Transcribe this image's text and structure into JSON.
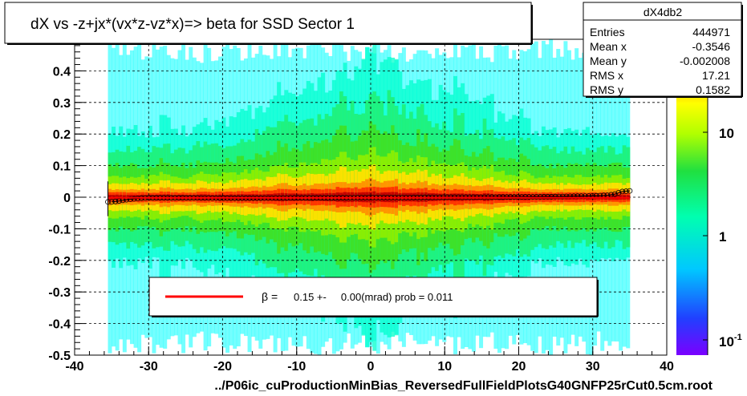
{
  "title": "dX vs  -z+jx*(vx*z-vz*x)=> beta  for SSD Sector 1",
  "footer": "../P06ic_cuProductionMinBias_ReversedFullFieldPlotsG40GNFP25rCut0.5cm.root",
  "stats": {
    "name": "dX4db2",
    "rows": [
      {
        "label": "Entries",
        "value": "444971"
      },
      {
        "label": "Mean x",
        "value": "-0.3546"
      },
      {
        "label": "Mean y",
        "value": "-0.002008"
      },
      {
        "label": "RMS x",
        "value": "17.21"
      },
      {
        "label": "RMS y",
        "value": "0.1582"
      }
    ]
  },
  "legend": {
    "symbol": "β =",
    "text": "0.15 +-     0.00(mrad) prob = 0.011",
    "line_color": "#ff0000"
  },
  "chart_data": {
    "type": "heatmap",
    "xlim": [
      -40,
      40
    ],
    "ylim": [
      -0.5,
      0.5
    ],
    "x_ticks": [
      "-40",
      "-30",
      "-20",
      "-10",
      "0",
      "10",
      "20",
      "30",
      "40"
    ],
    "y_ticks": [
      "-0.5",
      "-0.4",
      "-0.3",
      "-0.2",
      "-0.1",
      "0",
      "0.1",
      "0.2",
      "0.3",
      "0.4"
    ],
    "grid": true,
    "data_x_range": [
      -35.5,
      35
    ],
    "color_scale": {
      "type": "log",
      "ticks": [
        "10",
        "1",
        "10^-1"
      ]
    },
    "profile": {
      "x": [
        -35,
        -34,
        -33,
        -32,
        -31,
        -30,
        -25,
        -20,
        -15,
        -10,
        -5,
        0,
        5,
        10,
        15,
        20,
        25,
        30,
        32,
        33,
        34,
        35
      ],
      "y": [
        -0.015,
        -0.012,
        -0.008,
        -0.005,
        -0.003,
        -0.002,
        -0.002,
        -0.003,
        -0.003,
        -0.002,
        -0.002,
        -0.001,
        -0.001,
        0.0,
        0.0,
        0.001,
        0.002,
        0.004,
        0.006,
        0.01,
        0.018,
        0.02
      ]
    },
    "fit_line": {
      "y": -0.002,
      "color": "#ff0000"
    },
    "colors": {
      "high": "#8b0000",
      "mid": "#ffd700",
      "low": "#00ff7f",
      "lowest": "#00ffff"
    }
  }
}
